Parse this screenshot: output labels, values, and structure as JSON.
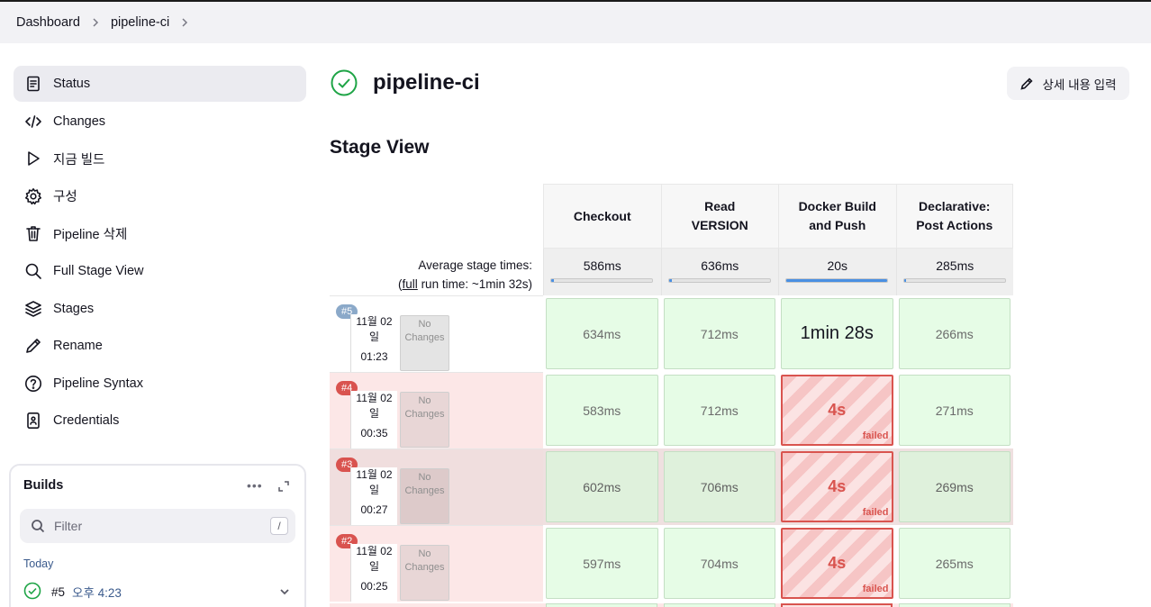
{
  "breadcrumb": [
    "Dashboard",
    "pipeline-ci"
  ],
  "sidebar": {
    "items": [
      {
        "label": "Status",
        "icon": "document-icon",
        "active": true
      },
      {
        "label": "Changes",
        "icon": "code-icon"
      },
      {
        "label": "지금 빌드",
        "icon": "play-icon"
      },
      {
        "label": "구성",
        "icon": "gear-icon"
      },
      {
        "label": "Pipeline 삭제",
        "icon": "trash-icon"
      },
      {
        "label": "Full Stage View",
        "icon": "search-icon"
      },
      {
        "label": "Stages",
        "icon": "layers-icon"
      },
      {
        "label": "Rename",
        "icon": "pencil-icon"
      },
      {
        "label": "Pipeline Syntax",
        "icon": "help-icon"
      },
      {
        "label": "Credentials",
        "icon": "id-card-icon"
      }
    ]
  },
  "builds": {
    "title": "Builds",
    "more": "•••",
    "filter_placeholder": "Filter",
    "filter_shortcut": "/",
    "group": "Today",
    "items": [
      {
        "number": "#5",
        "time": "오후 4:23",
        "status": "success"
      }
    ]
  },
  "job": {
    "title": "pipeline-ci",
    "status": "success",
    "edit_label": "상세 내용 입력"
  },
  "stage_view": {
    "title": "Stage View",
    "stages": [
      "Checkout",
      "Read VERSION",
      "Docker Build and Push",
      "Declarative: Post Actions"
    ],
    "avg_label_1": "Average stage times:",
    "avg_full": "full",
    "avg_label_2": " run time: ~1min 32s)",
    "avg_times": [
      "586ms",
      "636ms",
      "20s",
      "285ms"
    ],
    "avg_bar_fraction": [
      0.03,
      0.03,
      1.0,
      0.02
    ],
    "colors": {
      "badge_success": "#8ba9c9",
      "badge_failed": "#d9534f",
      "success": "#1ea446",
      "failed": "#d9544f"
    },
    "runs": [
      {
        "badge": "#5",
        "date": "11월 02 일",
        "time": "01:23",
        "changes": "No Changes",
        "status": "success",
        "row_bg": "#ffffff",
        "date_bg": "#ffffff",
        "changes_bg": "#e4e4e4",
        "stages": [
          {
            "value": "634ms",
            "state": "ok"
          },
          {
            "value": "712ms",
            "state": "ok"
          },
          {
            "value": "1min 28s",
            "state": "ok-big"
          },
          {
            "value": "266ms",
            "state": "ok"
          }
        ]
      },
      {
        "badge": "#4",
        "date": "11월 02 일",
        "time": "00:35",
        "changes": "No Changes",
        "status": "failed",
        "row_bg": "#fce7e7",
        "date_bg": "#ffffff",
        "changes_bg": "#e8d6d6",
        "stages": [
          {
            "value": "583ms",
            "state": "ok"
          },
          {
            "value": "712ms",
            "state": "ok"
          },
          {
            "value": "4s",
            "state": "failed",
            "tag": "failed"
          },
          {
            "value": "271ms",
            "state": "ok"
          }
        ]
      },
      {
        "badge": "#3",
        "date": "11월 02 일",
        "time": "00:27",
        "changes": "No Changes",
        "status": "failed",
        "row_bg": "#f0dede",
        "date_bg": "#ffffff",
        "changes_bg": "#ddcaca",
        "highlight": true,
        "stages": [
          {
            "value": "602ms",
            "state": "ok"
          },
          {
            "value": "706ms",
            "state": "ok"
          },
          {
            "value": "4s",
            "state": "failed",
            "tag": "failed"
          },
          {
            "value": "269ms",
            "state": "ok"
          }
        ]
      },
      {
        "badge": "#2",
        "date": "11월 02 일",
        "time": "00:25",
        "changes": "No Changes",
        "status": "failed",
        "row_bg": "#fce7e7",
        "date_bg": "#ffffff",
        "changes_bg": "#e8d6d6",
        "stages": [
          {
            "value": "597ms",
            "state": "ok"
          },
          {
            "value": "704ms",
            "state": "ok"
          },
          {
            "value": "4s",
            "state": "failed",
            "tag": "failed"
          },
          {
            "value": "265ms",
            "state": "ok"
          }
        ]
      }
    ]
  }
}
